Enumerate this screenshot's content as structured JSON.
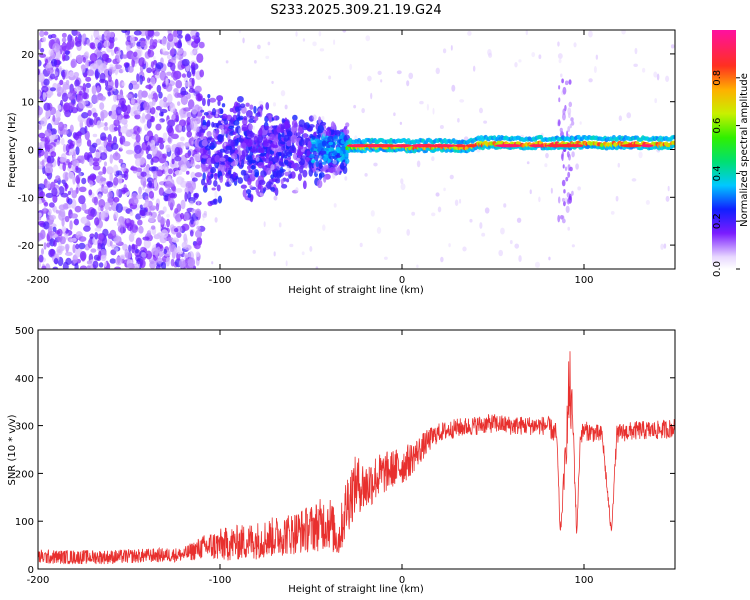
{
  "figure_title": "S233.2025.309.21.19.G24",
  "colors": {
    "snr_line": "#e8302e",
    "background": "#ffffff",
    "axis": "#000000"
  },
  "chart_data": [
    {
      "type": "heatmap",
      "title": "S233.2025.309.21.19.G24",
      "xlabel": "Height of straight line (km)",
      "ylabel": "Frequency (Hz)",
      "xlim": [
        -200,
        150
      ],
      "ylim": [
        -25,
        25
      ],
      "x_ticks": [
        "-200",
        "-100",
        "0",
        "100"
      ],
      "y_ticks": [
        "-20",
        "-10",
        "0",
        "10",
        "20"
      ],
      "colorbar": {
        "label": "Normalized spectral amplitude",
        "range": [
          0,
          1
        ],
        "ticks": [
          "0.0",
          "0.2",
          "0.4",
          "0.6",
          "0.8"
        ],
        "colormap": "rainbow (white-violet-blue-cyan-green-yellow-red-magenta)"
      },
      "features": [
        {
          "description_x_range": [
            -200,
            -110
          ],
          "frequency_range": [
            -25,
            25
          ],
          "amplitude": "low (0.1-0.2), scattered"
        },
        {
          "description_x_range": [
            -110,
            -30
          ],
          "frequency_range": [
            -12,
            10
          ],
          "amplitude": "0.1-0.3, converging"
        },
        {
          "description_x_range": [
            -30,
            150
          ],
          "frequency_center": 1,
          "frequency_width": 1.5,
          "amplitude": "0.6-0.9, narrow line"
        },
        {
          "description_x_range": [
            85,
            95
          ],
          "frequency_range": [
            -15,
            15
          ],
          "amplitude": "low, vertical streak"
        }
      ],
      "grid": false
    },
    {
      "type": "line",
      "xlabel": "Height of straight line (km)",
      "ylabel": "SNR (10 * v/v)",
      "xlim": [
        -200,
        150
      ],
      "ylim": [
        0,
        500
      ],
      "x_ticks": [
        "-200",
        "-100",
        "0",
        "100"
      ],
      "y_ticks": [
        "0",
        "100",
        "200",
        "300",
        "400",
        "500"
      ],
      "grid": false,
      "series": [
        {
          "x": [
            -200,
            -180,
            -160,
            -140,
            -120,
            -110,
            -100,
            -80,
            -60,
            -50,
            -40,
            -35,
            -30,
            -25,
            -20,
            -15,
            -10,
            -5,
            0,
            5,
            10,
            15,
            20,
            25,
            30,
            40,
            50,
            60,
            70,
            80,
            85,
            87,
            90,
            92,
            94,
            96,
            98,
            100,
            105,
            110,
            115,
            118,
            120,
            130,
            140,
            150
          ],
          "y": [
            25,
            25,
            25,
            28,
            30,
            45,
            50,
            60,
            75,
            85,
            100,
            60,
            140,
            180,
            170,
            190,
            200,
            210,
            215,
            230,
            250,
            270,
            285,
            290,
            295,
            300,
            305,
            300,
            300,
            300,
            280,
            70,
            250,
            380,
            300,
            70,
            280,
            290,
            285,
            280,
            75,
            280,
            285,
            290,
            290,
            295
          ],
          "noise_amplitude": [
            15,
            15,
            15,
            15,
            15,
            25,
            35,
            40,
            45,
            50,
            60,
            40,
            70,
            60,
            55,
            50,
            45,
            40,
            40,
            35,
            30,
            25,
            20,
            20,
            20,
            20,
            20,
            20,
            20,
            20,
            25,
            10,
            40,
            100,
            40,
            10,
            20,
            20,
            20,
            20,
            10,
            20,
            20,
            20,
            20,
            20
          ]
        }
      ]
    }
  ]
}
